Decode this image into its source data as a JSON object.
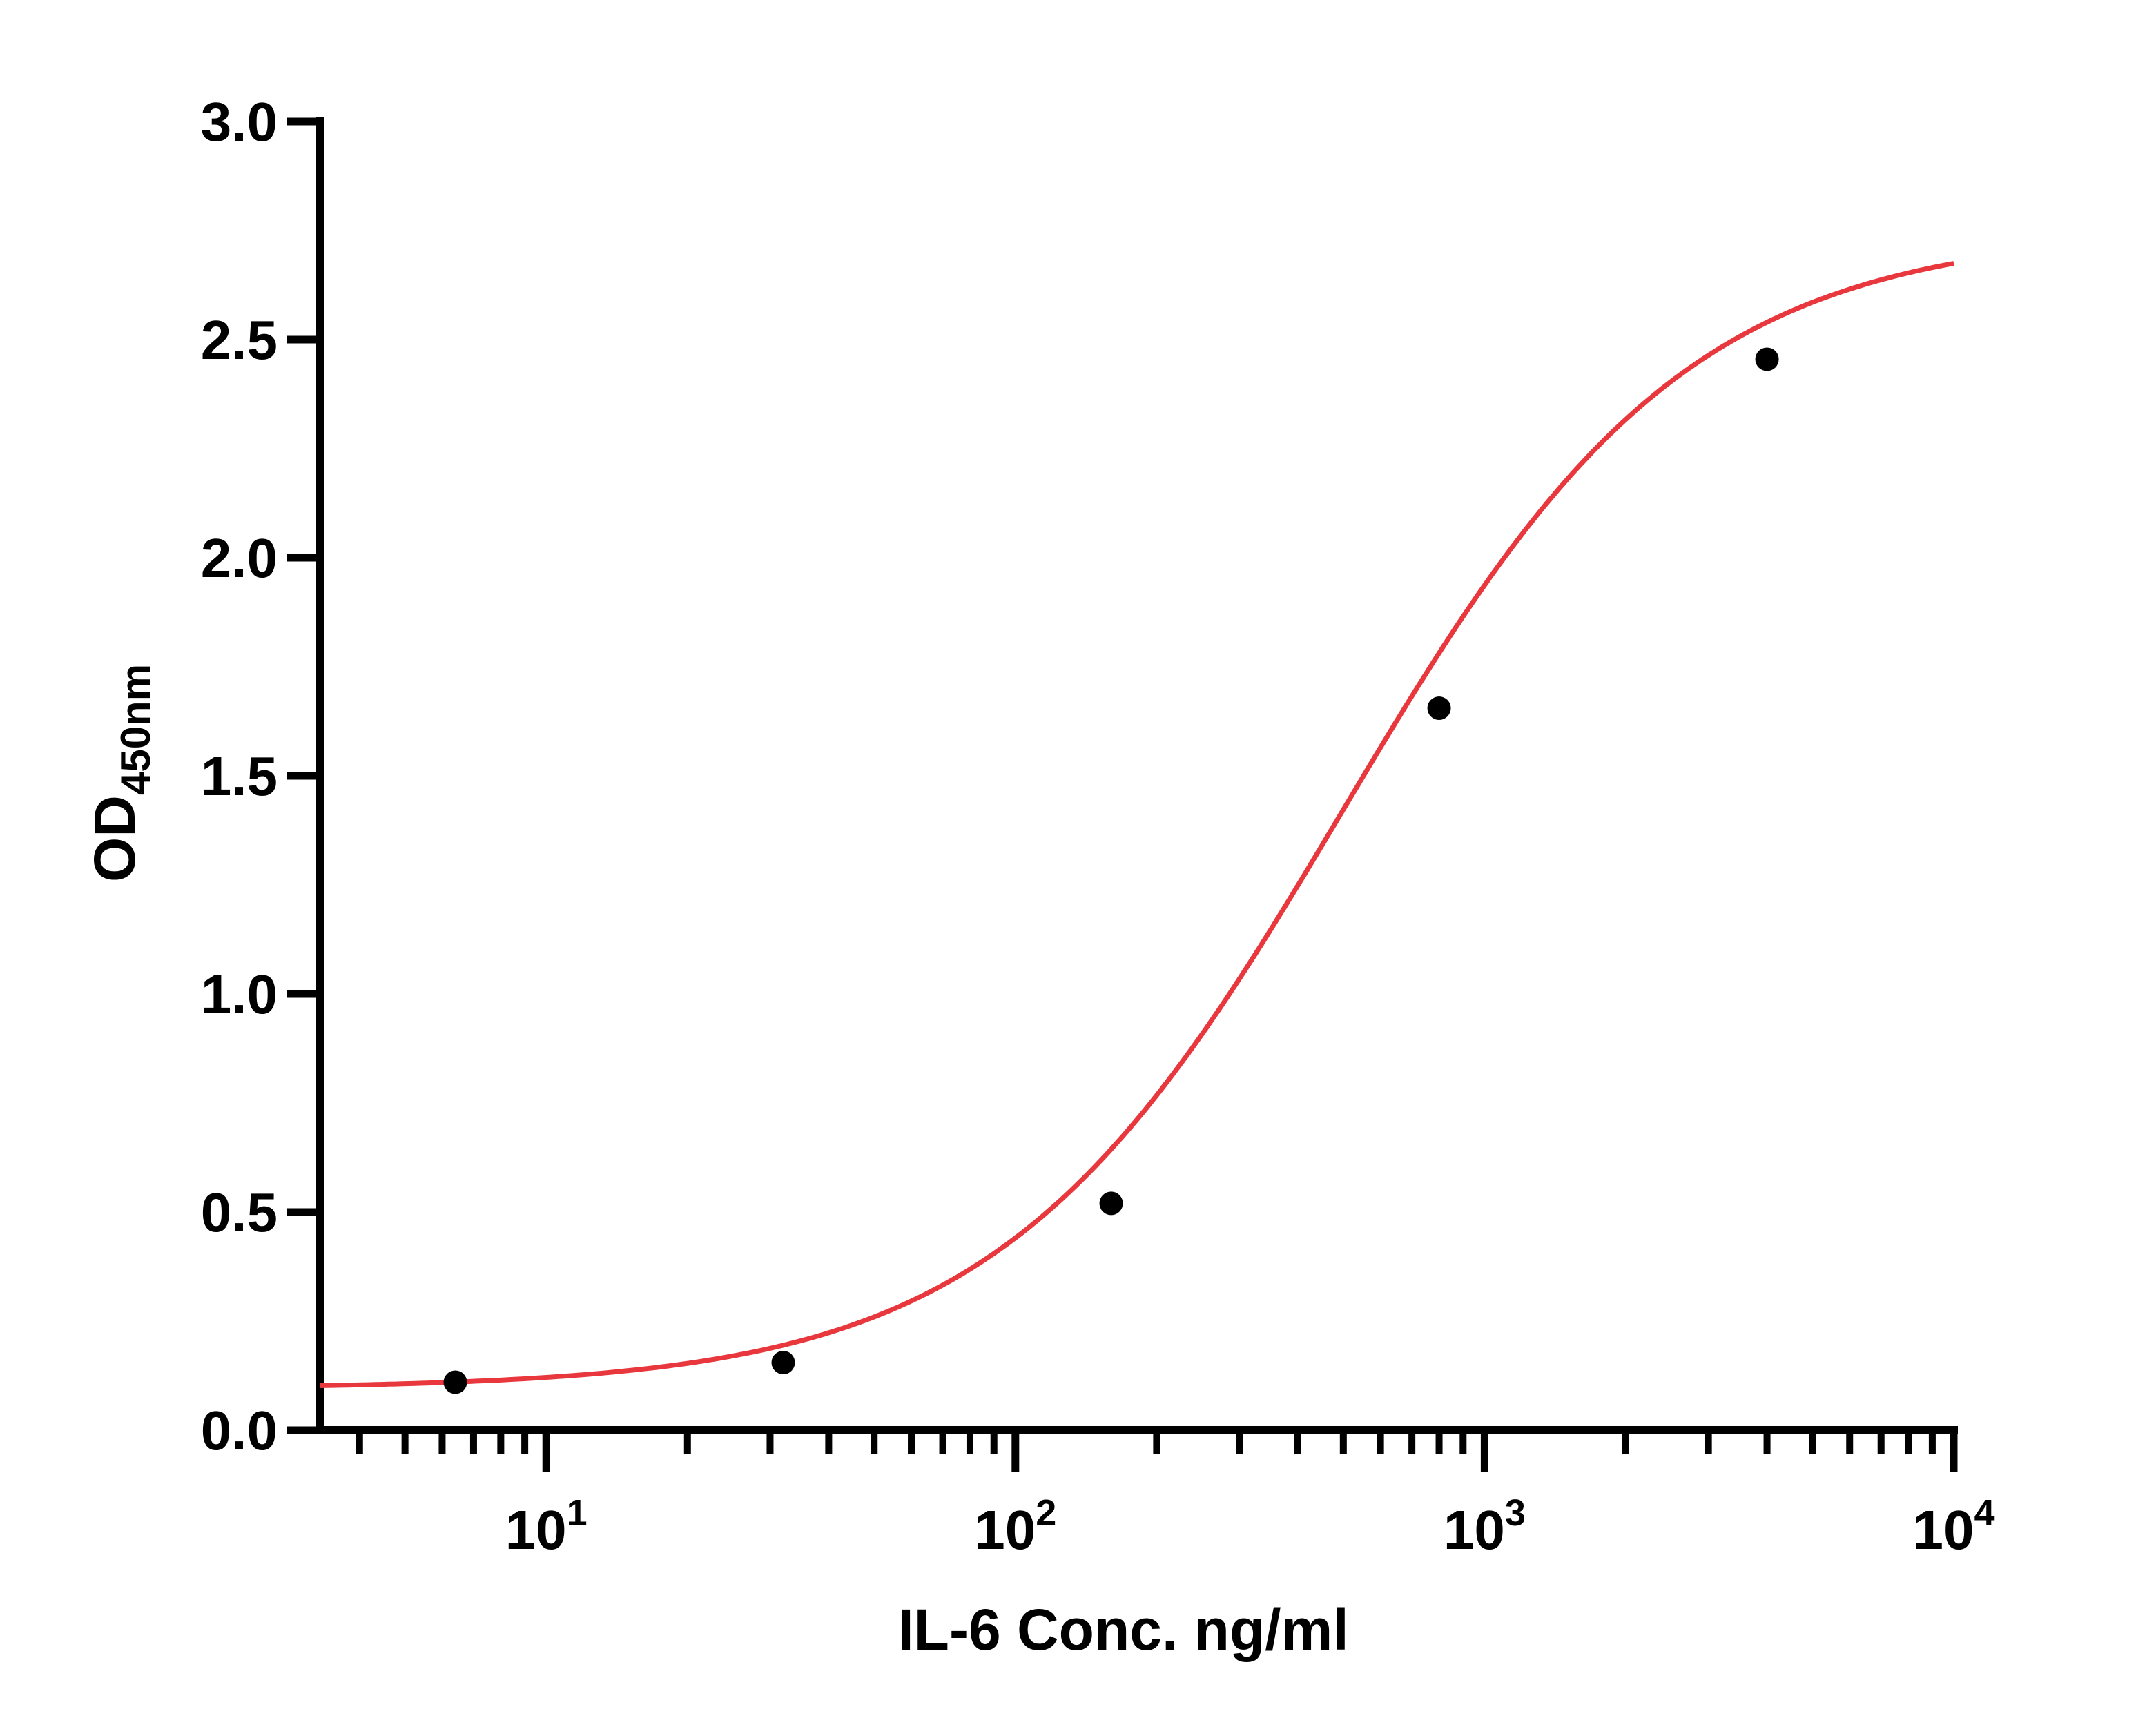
{
  "chart_data": {
    "type": "scatter",
    "xscale": "log",
    "xlim": [
      3.3,
      10000
    ],
    "ylim": [
      0,
      3.0
    ],
    "xlabel": "IL-6 Conc. ng/ml",
    "ylabel": {
      "main": "OD",
      "subscript": "450nm"
    },
    "yticks": [
      "0.0",
      "0.5",
      "1.0",
      "1.5",
      "2.0",
      "2.5",
      "3.0"
    ],
    "xticks": [
      {
        "base": "10",
        "exp": "1",
        "value": 10
      },
      {
        "base": "10",
        "exp": "2",
        "value": 100
      },
      {
        "base": "10",
        "exp": "3",
        "value": 1000
      },
      {
        "base": "10",
        "exp": "4",
        "value": 10000
      }
    ],
    "series": [
      {
        "points": [
          {
            "x": 6.4,
            "y": 0.11
          },
          {
            "x": 32,
            "y": 0.155
          },
          {
            "x": 160,
            "y": 0.52
          },
          {
            "x": 800,
            "y": 1.655
          },
          {
            "x": 4000,
            "y": 2.455
          }
        ],
        "fit_curve": {
          "model": "4PL",
          "bottom": 0.095,
          "top": 2.75,
          "ec50": 500,
          "hill": 1.18
        },
        "marker_color": "#000000",
        "curve_color": "#E8383D"
      }
    ],
    "grid": false,
    "legend": "none"
  }
}
